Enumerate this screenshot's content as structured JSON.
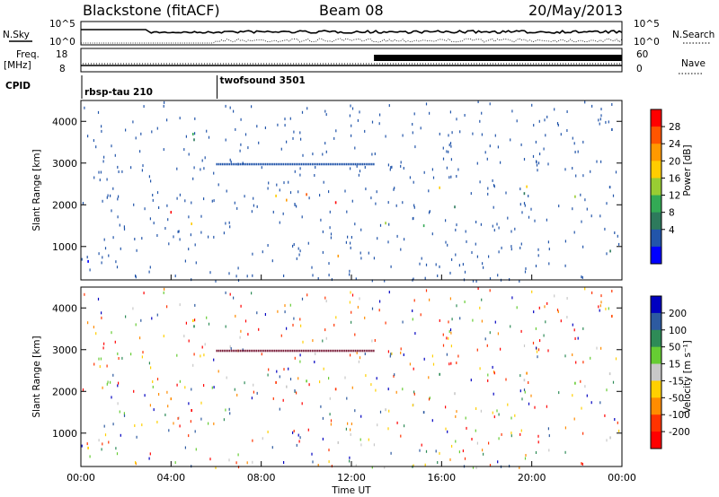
{
  "header": {
    "station": "Blackstone (fitACF)",
    "beam": "Beam 08",
    "date": "20/May/2013"
  },
  "top_panels": {
    "nsky_label": "N.Sky",
    "nsearch_label": "N.Search",
    "freq_label_line1": "Freq.",
    "freq_label_line2": "[MHz]",
    "nave_label": "Nave",
    "cpid_label": "CPID",
    "noise_left_ticks": [
      "10^5",
      "10^0"
    ],
    "noise_right_ticks": [
      "10^5",
      "10^0"
    ],
    "freq_ticks": [
      "18",
      "8"
    ],
    "nave_ticks": [
      "60",
      "0"
    ],
    "cpid_segments": [
      {
        "name": "rbsp-tau 210",
        "start_hour": 0,
        "end_hour": 6
      },
      {
        "name": "twofsound 3501",
        "start_hour": 6,
        "end_hour": 24
      }
    ]
  },
  "panels": [
    {
      "id": "power",
      "ylabel": "Slant Range [km]",
      "colorbar_title": "Power [dB]",
      "colorbar_ticks": [
        "28",
        "24",
        "20",
        "16",
        "12",
        "8",
        "4"
      ],
      "colorbar_colors": [
        "#ff0000",
        "#ff5500",
        "#ff9900",
        "#ffcc00",
        "#99cc33",
        "#33aa55",
        "#2d7a5c",
        "#2255aa",
        "#0000ff"
      ]
    },
    {
      "id": "velocity",
      "ylabel": "Slant Range [km]",
      "colorbar_title": "Velocity [m s⁻¹]",
      "colorbar_ticks": [
        "200",
        "100",
        "50",
        "15",
        "-15",
        "-50",
        "-100",
        "-200"
      ],
      "colorbar_colors": [
        "#0000c0",
        "#2d5aa0",
        "#2e8b57",
        "#66cc33",
        "#c8c8c8",
        "#ffd000",
        "#ff8c00",
        "#ff3300",
        "#ff0000"
      ]
    }
  ],
  "chart_data": {
    "type": "heatmap",
    "xlabel": "Time UT",
    "x_ticks": [
      "00:00",
      "04:00",
      "08:00",
      "12:00",
      "16:00",
      "20:00",
      "00:00"
    ],
    "xlim_hours": [
      0,
      24
    ],
    "ylim_km": [
      200,
      4500
    ],
    "y_ticks": [
      "1000",
      "2000",
      "3000",
      "4000"
    ],
    "y_tick_values": [
      1000,
      2000,
      3000,
      4000
    ],
    "frequency_mhz_segments": [
      {
        "start_hour": 0,
        "end_hour": 13,
        "value": 10.5
      },
      {
        "start_hour": 13,
        "end_hour": 24,
        "value": 10.5
      }
    ],
    "scatter_bands": [
      {
        "t0": 0,
        "t1": 1.5,
        "r0": 1350,
        "r1": 1650,
        "level": 0.5
      },
      {
        "t0": 0,
        "t1": 2.5,
        "r0": 300,
        "r1": 900,
        "level": 0.35
      },
      {
        "t0": 1.5,
        "t1": 6,
        "r0": 1500,
        "r1": 2100,
        "level": 0.75
      },
      {
        "t0": 3.2,
        "t1": 6.2,
        "r0": 3500,
        "r1": 4400,
        "level": 0.55
      },
      {
        "t0": 6,
        "t1": 9.8,
        "r0": 2000,
        "r1": 2600,
        "level": 0.5
      },
      {
        "t0": 9.8,
        "t1": 11.5,
        "r0": 900,
        "r1": 2400,
        "level": 0.8
      },
      {
        "t0": 11,
        "t1": 13,
        "r0": 300,
        "r1": 1000,
        "level": 0.95
      },
      {
        "t0": 13,
        "t1": 24,
        "r0": 1500,
        "r1": 2500,
        "level": 0.45
      },
      {
        "t0": 22,
        "t1": 24,
        "r0": 600,
        "r1": 1100,
        "level": 0.3
      }
    ],
    "artifact_line_km": 3000
  }
}
